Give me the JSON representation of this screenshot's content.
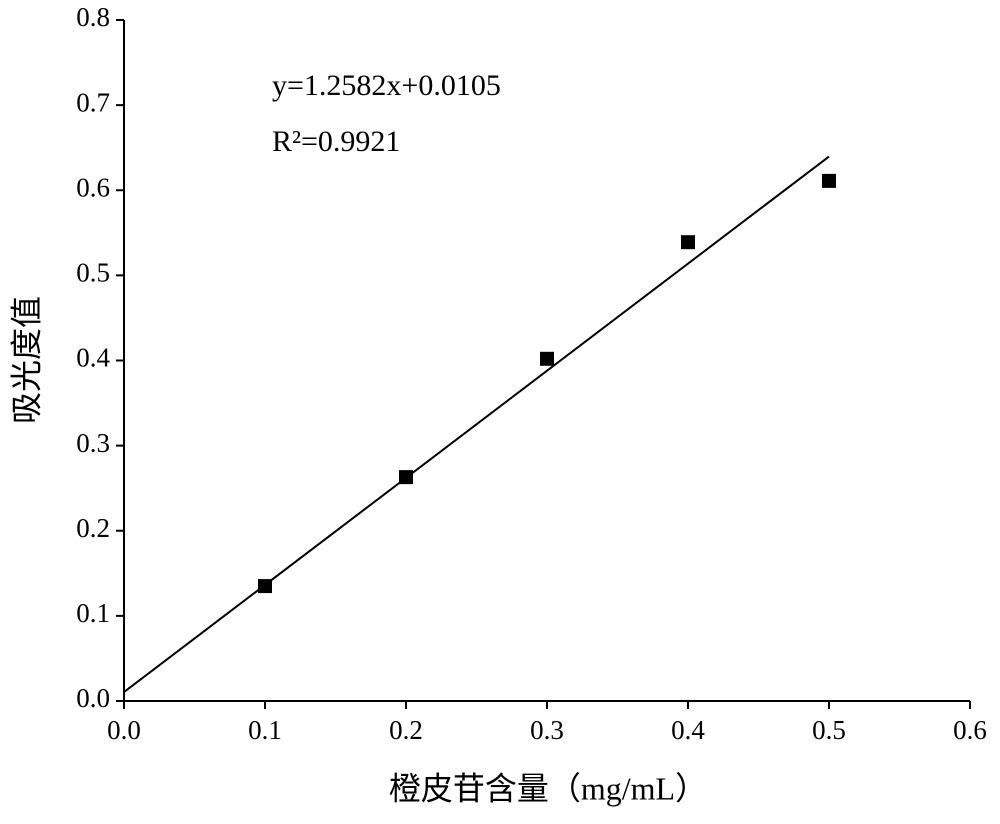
{
  "chart_data": {
    "type": "scatter",
    "x_label": "橙皮苷含量（mg/mL）",
    "y_label": "吸光度值",
    "annotations": [
      "y=1.2582x+0.0105",
      "R²=0.9921"
    ],
    "x": [
      0.1,
      0.2,
      0.3,
      0.4,
      0.5
    ],
    "values": [
      0.135,
      0.263,
      0.402,
      0.539,
      0.611
    ],
    "color": "#000000",
    "fit_line": {
      "x": [
        0,
        0.5
      ],
      "values": [
        0.0105,
        0.6396
      ]
    },
    "xlim": [
      0,
      0.6
    ],
    "ylim": [
      0,
      0.8
    ],
    "xticks": [
      {
        "value": 0,
        "label": "0.0"
      },
      0.1,
      0.2,
      0.3,
      0.4,
      0.5,
      0.6
    ],
    "yticks": [
      {
        "value": 0,
        "label": "0.0"
      },
      0.1,
      0.2,
      0.3,
      0.4,
      0.5,
      0.6,
      0.7,
      0.8
    ],
    "grid": false
  }
}
